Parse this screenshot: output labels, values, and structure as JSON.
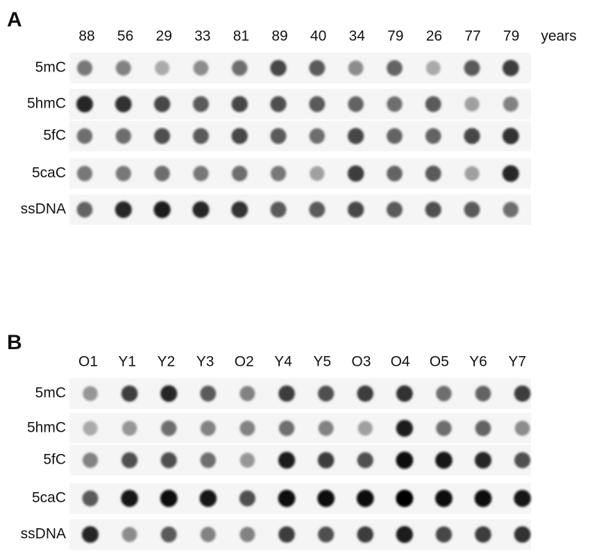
{
  "panels": [
    {
      "label": "A",
      "columns": [
        "88",
        "56",
        "29",
        "33",
        "81",
        "89",
        "40",
        "34",
        "79",
        "26",
        "77",
        "79"
      ],
      "unit": "years",
      "rows": [
        "5mC",
        "5hmC",
        "5fC",
        "5caC",
        "ssDNA"
      ]
    },
    {
      "label": "B",
      "columns": [
        "O1",
        "Y1",
        "Y2",
        "Y3",
        "O2",
        "Y4",
        "Y5",
        "O3",
        "O4",
        "O5",
        "Y6",
        "Y7"
      ],
      "rows": [
        "5mC",
        "5hmC",
        "5fC",
        "5caC",
        "ssDNA"
      ]
    }
  ]
}
